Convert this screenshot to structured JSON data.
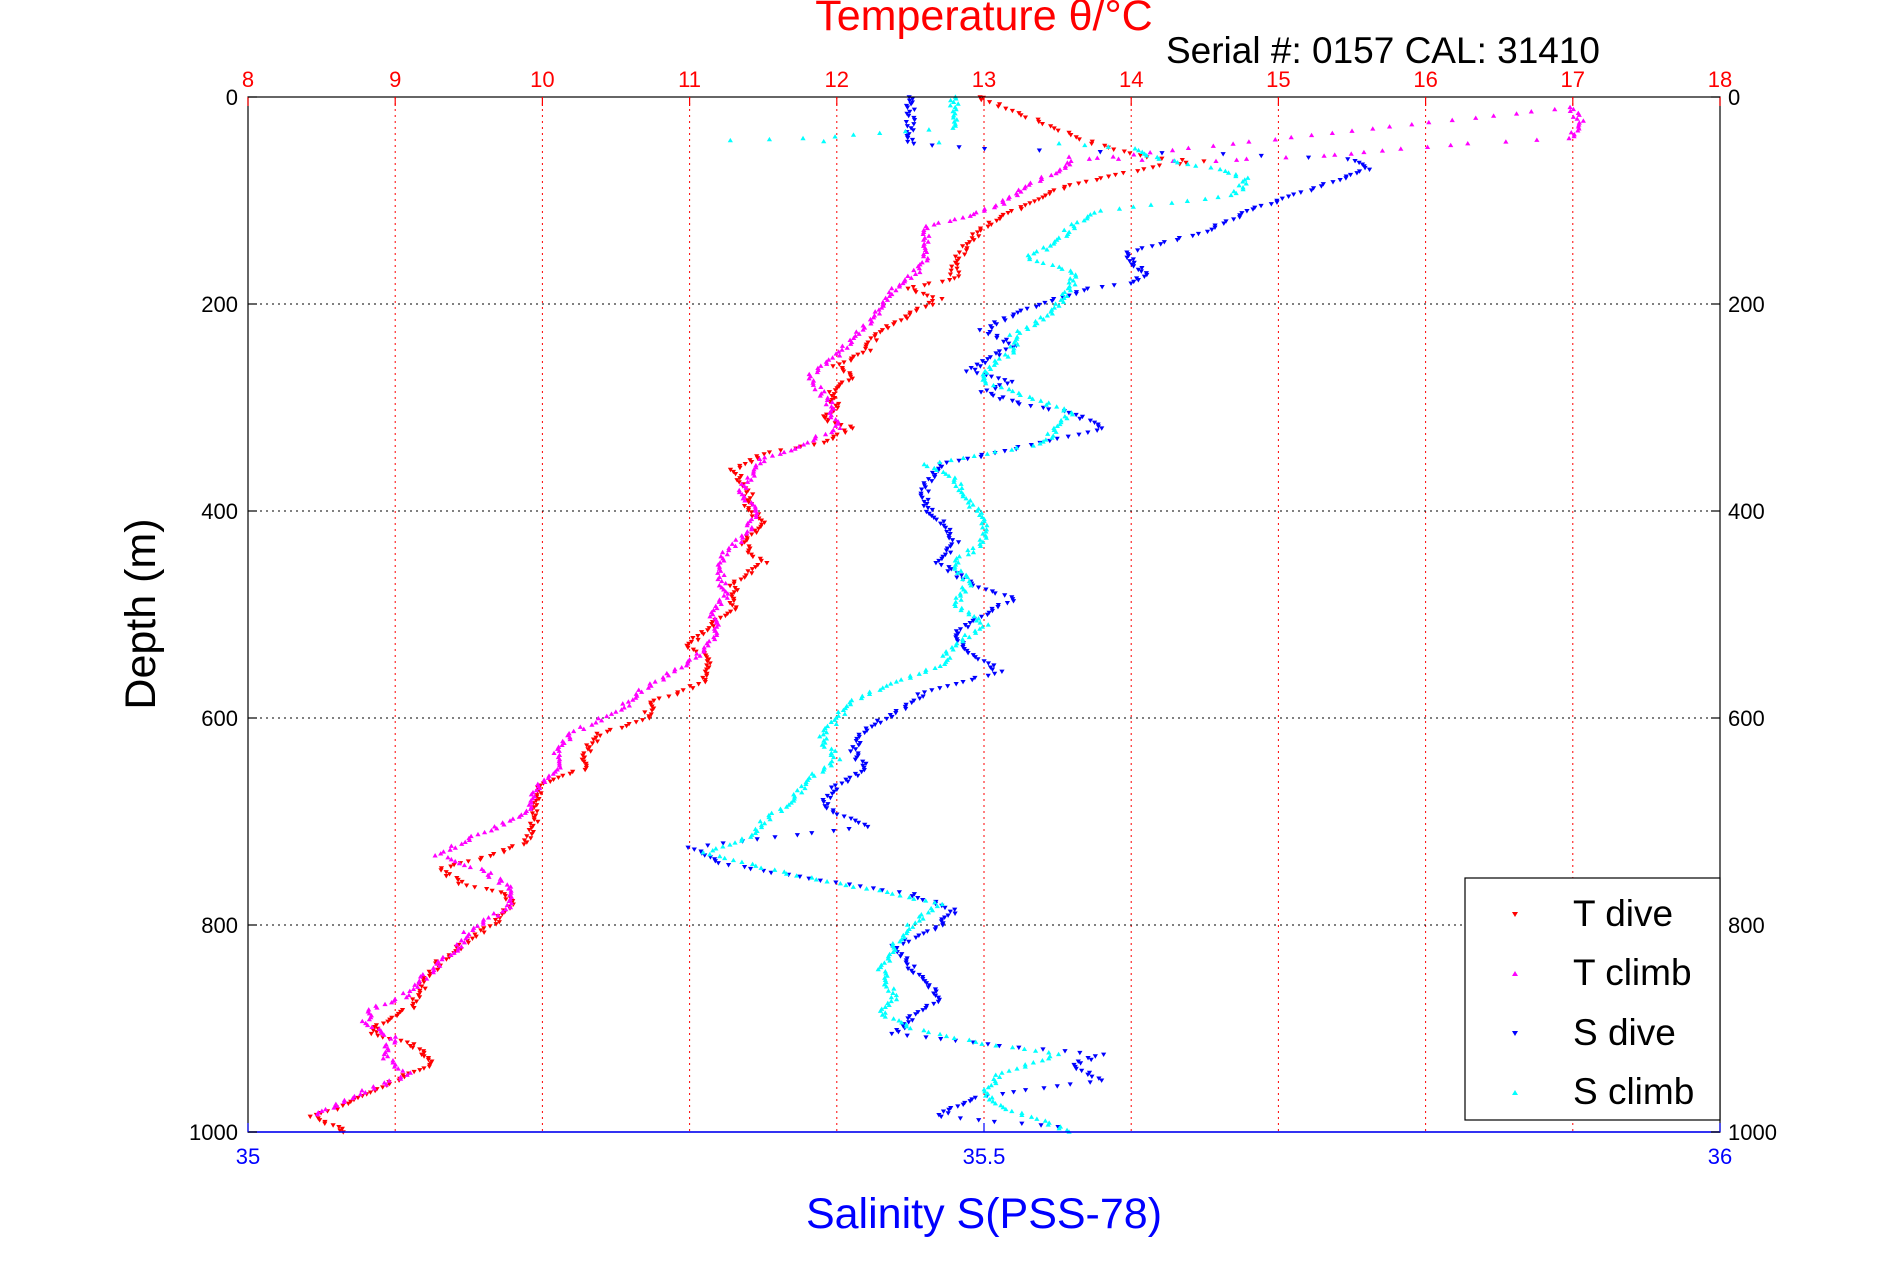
{
  "chart_data": {
    "type": "scatter",
    "title": "Temperature θ/°C",
    "subtitle": "Serial #: 0157  CAL: 31410",
    "ylabel": "Depth (m)",
    "xlabel_bottom": "Salinity S(PSS-78)",
    "xlabel_top": "Temperature θ/°C",
    "y_axis": {
      "min": 0,
      "max": 1000,
      "reversed": true,
      "ticks": [
        0,
        200,
        400,
        600,
        800,
        1000
      ]
    },
    "x_top_axis": {
      "min": 8,
      "max": 18,
      "ticks": [
        8,
        9,
        10,
        11,
        12,
        13,
        14,
        15,
        16,
        17,
        18
      ]
    },
    "x_bottom_axis": {
      "min": 35,
      "max": 36,
      "ticks": [
        35,
        35.5,
        36
      ]
    },
    "grid": true,
    "legend_position": "bottom-right",
    "series": [
      {
        "name": "T dive",
        "axis": "top",
        "color": "#ff0000",
        "marker": "triangle-down",
        "points": [
          [
            12.95,
            0
          ],
          [
            12.97,
            0.5
          ],
          [
            13.75,
            45
          ],
          [
            14.1,
            58
          ],
          [
            14.5,
            62
          ],
          [
            14.2,
            66
          ],
          [
            13.9,
            75
          ],
          [
            13.6,
            85
          ],
          [
            13.4,
            95
          ],
          [
            13.2,
            110
          ],
          [
            13.0,
            125
          ],
          [
            12.9,
            140
          ],
          [
            12.8,
            160
          ],
          [
            12.8,
            175
          ],
          [
            12.5,
            185
          ],
          [
            12.7,
            195
          ],
          [
            12.5,
            210
          ],
          [
            12.3,
            225
          ],
          [
            12.2,
            245
          ],
          [
            12.0,
            260
          ],
          [
            12.1,
            270
          ],
          [
            11.95,
            285
          ],
          [
            12.0,
            300
          ],
          [
            11.9,
            310
          ],
          [
            12.1,
            320
          ],
          [
            11.95,
            332
          ],
          [
            11.5,
            345
          ],
          [
            11.3,
            360
          ],
          [
            11.4,
            380
          ],
          [
            11.4,
            395
          ],
          [
            11.5,
            415
          ],
          [
            11.35,
            430
          ],
          [
            11.5,
            450
          ],
          [
            11.3,
            470
          ],
          [
            11.3,
            495
          ],
          [
            11.1,
            515
          ],
          [
            11.0,
            530
          ],
          [
            11.15,
            545
          ],
          [
            11.1,
            565
          ],
          [
            10.75,
            585
          ],
          [
            10.7,
            600
          ],
          [
            10.4,
            615
          ],
          [
            10.3,
            630
          ],
          [
            10.3,
            648
          ],
          [
            10.0,
            665
          ],
          [
            9.95,
            680
          ],
          [
            9.95,
            700
          ],
          [
            9.9,
            720
          ],
          [
            9.6,
            735
          ],
          [
            9.3,
            745
          ],
          [
            9.45,
            760
          ],
          [
            9.75,
            770
          ],
          [
            9.8,
            780
          ],
          [
            9.7,
            795
          ],
          [
            9.5,
            815
          ],
          [
            9.3,
            835
          ],
          [
            9.2,
            855
          ],
          [
            9.1,
            880
          ],
          [
            8.9,
            895
          ],
          [
            8.85,
            905
          ],
          [
            9.1,
            915
          ],
          [
            9.2,
            925
          ],
          [
            9.25,
            935
          ],
          [
            9.05,
            945
          ],
          [
            8.95,
            955
          ],
          [
            8.8,
            965
          ],
          [
            8.6,
            978
          ],
          [
            8.45,
            985
          ],
          [
            8.6,
            995
          ],
          [
            8.65,
            1000
          ]
        ]
      },
      {
        "name": "T climb",
        "axis": "top",
        "color": "#ff00ff",
        "marker": "triangle-up",
        "points": [
          [
            13.6,
            58
          ],
          [
            13.9,
            60
          ],
          [
            14.3,
            62
          ],
          [
            14.6,
            62
          ],
          [
            14.8,
            60
          ],
          [
            15.3,
            57
          ],
          [
            15.5,
            55
          ],
          [
            15.7,
            52
          ],
          [
            16.3,
            45
          ],
          [
            17.0,
            40
          ],
          [
            17.05,
            25
          ],
          [
            17.0,
            10
          ],
          [
            13.6,
            62
          ],
          [
            13.5,
            72
          ],
          [
            13.3,
            85
          ],
          [
            13.2,
            95
          ],
          [
            13.1,
            105
          ],
          [
            12.9,
            115
          ],
          [
            12.6,
            125
          ],
          [
            12.6,
            140
          ],
          [
            12.6,
            160
          ],
          [
            12.5,
            175
          ],
          [
            12.4,
            185
          ],
          [
            12.3,
            200
          ],
          [
            12.25,
            215
          ],
          [
            12.1,
            235
          ],
          [
            12.0,
            250
          ],
          [
            11.8,
            270
          ],
          [
            11.95,
            295
          ],
          [
            12.0,
            320
          ],
          [
            11.7,
            340
          ],
          [
            11.5,
            350
          ],
          [
            11.35,
            380
          ],
          [
            11.45,
            400
          ],
          [
            11.4,
            420
          ],
          [
            11.25,
            440
          ],
          [
            11.2,
            460
          ],
          [
            11.25,
            480
          ],
          [
            11.15,
            500
          ],
          [
            11.2,
            520
          ],
          [
            11.05,
            540
          ],
          [
            10.9,
            555
          ],
          [
            10.65,
            575
          ],
          [
            10.55,
            590
          ],
          [
            10.2,
            615
          ],
          [
            10.1,
            630
          ],
          [
            10.1,
            650
          ],
          [
            9.95,
            670
          ],
          [
            9.9,
            690
          ],
          [
            9.7,
            705
          ],
          [
            9.45,
            720
          ],
          [
            9.3,
            733
          ],
          [
            9.6,
            748
          ],
          [
            9.8,
            765
          ],
          [
            9.75,
            785
          ],
          [
            9.5,
            805
          ],
          [
            9.4,
            825
          ],
          [
            9.2,
            850
          ],
          [
            9.05,
            870
          ],
          [
            8.85,
            880
          ],
          [
            8.8,
            895
          ],
          [
            9.0,
            910
          ],
          [
            8.9,
            925
          ],
          [
            9.1,
            945
          ],
          [
            8.8,
            960
          ],
          [
            8.6,
            975
          ],
          [
            8.45,
            983
          ]
        ]
      },
      {
        "name": "S dive",
        "axis": "bottom",
        "color": "#0000ff",
        "marker": "triangle-down",
        "points": [
          [
            35.45,
            0
          ],
          [
            35.45,
            10
          ],
          [
            35.45,
            30
          ],
          [
            35.45,
            45
          ],
          [
            35.5,
            50
          ],
          [
            35.58,
            53
          ],
          [
            35.66,
            55
          ],
          [
            35.75,
            60
          ],
          [
            35.76,
            70
          ],
          [
            35.74,
            80
          ],
          [
            35.7,
            100
          ],
          [
            35.68,
            110
          ],
          [
            35.65,
            130
          ],
          [
            35.6,
            150
          ],
          [
            35.6,
            160
          ],
          [
            35.61,
            170
          ],
          [
            35.6,
            180
          ],
          [
            35.57,
            185
          ],
          [
            35.55,
            195
          ],
          [
            35.52,
            210
          ],
          [
            35.5,
            225
          ],
          [
            35.52,
            240
          ],
          [
            35.5,
            255
          ],
          [
            35.49,
            265
          ],
          [
            35.52,
            275
          ],
          [
            35.5,
            285
          ],
          [
            35.52,
            295
          ],
          [
            35.56,
            305
          ],
          [
            35.58,
            320
          ],
          [
            35.52,
            340
          ],
          [
            35.47,
            355
          ],
          [
            35.46,
            375
          ],
          [
            35.46,
            395
          ],
          [
            35.47,
            410
          ],
          [
            35.48,
            430
          ],
          [
            35.47,
            450
          ],
          [
            35.49,
            470
          ],
          [
            35.52,
            485
          ],
          [
            35.5,
            500
          ],
          [
            35.48,
            520
          ],
          [
            35.49,
            535
          ],
          [
            35.51,
            555
          ],
          [
            35.46,
            575
          ],
          [
            35.44,
            595
          ],
          [
            35.42,
            610
          ],
          [
            35.41,
            630
          ],
          [
            35.42,
            650
          ],
          [
            35.4,
            665
          ],
          [
            35.39,
            685
          ],
          [
            35.42,
            705
          ],
          [
            35.3,
            725
          ],
          [
            35.32,
            740
          ],
          [
            35.38,
            755
          ],
          [
            35.45,
            770
          ],
          [
            35.48,
            785
          ],
          [
            35.47,
            800
          ],
          [
            35.44,
            820
          ],
          [
            35.45,
            840
          ],
          [
            35.47,
            870
          ],
          [
            35.45,
            890
          ],
          [
            35.44,
            905
          ],
          [
            35.5,
            915
          ],
          [
            35.58,
            925
          ],
          [
            35.56,
            935
          ],
          [
            35.58,
            950
          ],
          [
            35.5,
            965
          ],
          [
            35.48,
            975
          ],
          [
            35.47,
            985
          ],
          [
            35.55,
            995
          ]
        ]
      },
      {
        "name": "S climb",
        "axis": "bottom",
        "color": "#00ffff",
        "marker": "triangle-up",
        "points": [
          [
            35.48,
            0
          ],
          [
            35.48,
            10
          ],
          [
            35.48,
            30
          ],
          [
            35.38,
            40
          ],
          [
            35.33,
            42
          ],
          [
            35.39,
            43
          ],
          [
            35.55,
            45
          ],
          [
            35.6,
            50
          ],
          [
            35.62,
            60
          ],
          [
            35.66,
            70
          ],
          [
            35.68,
            80
          ],
          [
            35.67,
            95
          ],
          [
            35.58,
            110
          ],
          [
            35.56,
            125
          ],
          [
            35.55,
            140
          ],
          [
            35.53,
            155
          ],
          [
            35.56,
            170
          ],
          [
            35.56,
            185
          ],
          [
            35.55,
            200
          ],
          [
            35.54,
            215
          ],
          [
            35.52,
            230
          ],
          [
            35.52,
            245
          ],
          [
            35.5,
            265
          ],
          [
            35.5,
            275
          ],
          [
            35.53,
            290
          ],
          [
            35.56,
            305
          ],
          [
            35.55,
            320
          ],
          [
            35.54,
            335
          ],
          [
            35.46,
            355
          ],
          [
            35.48,
            370
          ],
          [
            35.49,
            390
          ],
          [
            35.5,
            410
          ],
          [
            35.5,
            430
          ],
          [
            35.48,
            450
          ],
          [
            35.49,
            470
          ],
          [
            35.48,
            490
          ],
          [
            35.5,
            510
          ],
          [
            35.48,
            530
          ],
          [
            35.47,
            550
          ],
          [
            35.44,
            565
          ],
          [
            35.41,
            585
          ],
          [
            35.4,
            600
          ],
          [
            35.39,
            620
          ],
          [
            35.4,
            640
          ],
          [
            35.38,
            660
          ],
          [
            35.37,
            680
          ],
          [
            35.35,
            700
          ],
          [
            35.34,
            715
          ],
          [
            35.31,
            730
          ],
          [
            35.35,
            745
          ],
          [
            35.4,
            760
          ],
          [
            35.44,
            770
          ],
          [
            35.47,
            780
          ],
          [
            35.45,
            800
          ],
          [
            35.44,
            820
          ],
          [
            35.43,
            845
          ],
          [
            35.44,
            870
          ],
          [
            35.43,
            885
          ],
          [
            35.45,
            900
          ],
          [
            35.5,
            915
          ],
          [
            35.55,
            925
          ],
          [
            35.51,
            945
          ],
          [
            35.5,
            965
          ],
          [
            35.52,
            980
          ],
          [
            35.55,
            995
          ],
          [
            35.56,
            1000
          ]
        ]
      }
    ]
  }
}
